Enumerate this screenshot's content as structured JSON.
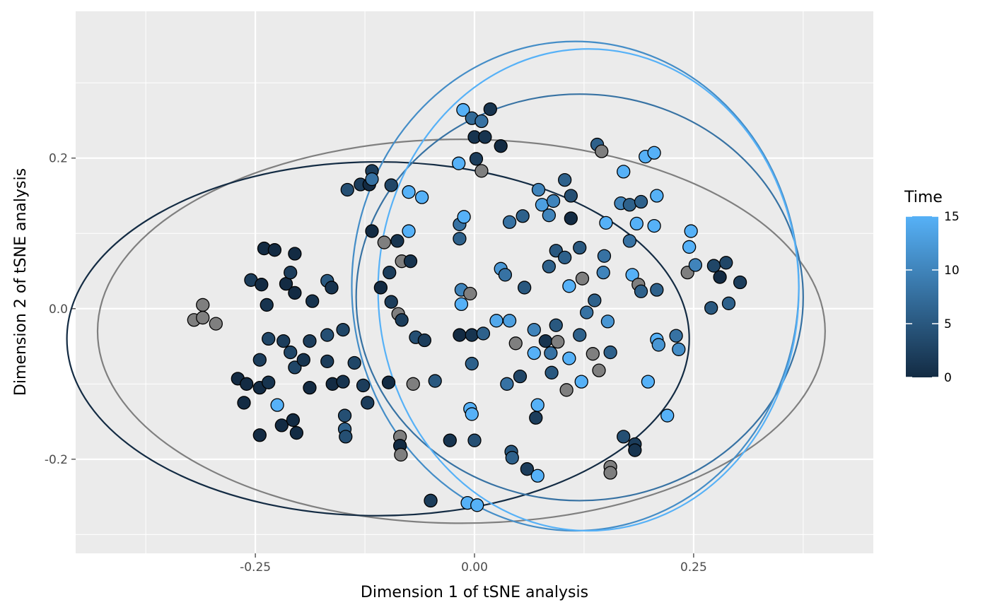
{
  "chart_data": {
    "type": "scatter",
    "xlabel": "Dimension 1 of tSNE analysis",
    "ylabel": "Dimension 2 of tSNE analysis",
    "xlim": [
      -0.455,
      0.455
    ],
    "ylim": [
      -0.325,
      0.395
    ],
    "x_ticks": [
      -0.25,
      0.0,
      0.25
    ],
    "x_tick_labels": [
      "-0.25",
      "0.00",
      "0.25"
    ],
    "y_ticks": [
      -0.2,
      0.0,
      0.2
    ],
    "y_tick_labels": [
      "-0.2",
      "0.0",
      "0.2"
    ],
    "grid": true,
    "panel_background": "#ebebeb",
    "legend": {
      "title": "Time",
      "placement": "right",
      "type": "colorbar",
      "range": [
        0,
        15
      ],
      "breaks": [
        0,
        5,
        10,
        15
      ],
      "break_labels": [
        "0",
        "5",
        "10",
        "15"
      ],
      "low_color": "#132b43",
      "high_color": "#56b1f7",
      "na_color": "#7f7f7f"
    },
    "ellipses": [
      {
        "time": null,
        "cx": -0.015,
        "cy": -0.03,
        "rx": 0.415,
        "ry": 0.255
      },
      {
        "time": 0,
        "cx": -0.11,
        "cy": -0.04,
        "rx": 0.355,
        "ry": 0.235
      },
      {
        "time": 8,
        "cx": 0.12,
        "cy": 0.015,
        "rx": 0.255,
        "ry": 0.27
      },
      {
        "time": 11,
        "cx": 0.115,
        "cy": 0.03,
        "rx": 0.255,
        "ry": 0.325
      },
      {
        "time": 15,
        "cx": 0.13,
        "cy": 0.025,
        "rx": 0.24,
        "ry": 0.32
      }
    ],
    "points": [
      {
        "x": -0.32,
        "y": -0.015,
        "t": null
      },
      {
        "x": -0.31,
        "y": 0.005,
        "t": null
      },
      {
        "x": -0.31,
        "y": -0.012,
        "t": null
      },
      {
        "x": -0.295,
        "y": -0.02,
        "t": null
      },
      {
        "x": -0.27,
        "y": -0.093,
        "t": 0
      },
      {
        "x": -0.263,
        "y": -0.125,
        "t": 0
      },
      {
        "x": -0.26,
        "y": -0.1,
        "t": 0
      },
      {
        "x": -0.255,
        "y": 0.038,
        "t": 2
      },
      {
        "x": -0.245,
        "y": -0.168,
        "t": 0
      },
      {
        "x": -0.245,
        "y": -0.068,
        "t": 2
      },
      {
        "x": -0.245,
        "y": -0.105,
        "t": 0
      },
      {
        "x": -0.243,
        "y": 0.032,
        "t": 0
      },
      {
        "x": -0.24,
        "y": 0.08,
        "t": 0
      },
      {
        "x": -0.237,
        "y": 0.005,
        "t": 1
      },
      {
        "x": -0.235,
        "y": -0.04,
        "t": 3
      },
      {
        "x": -0.235,
        "y": -0.098,
        "t": 1
      },
      {
        "x": -0.228,
        "y": 0.078,
        "t": 0
      },
      {
        "x": -0.225,
        "y": -0.128,
        "t": 15
      },
      {
        "x": -0.22,
        "y": -0.155,
        "t": 0
      },
      {
        "x": -0.218,
        "y": -0.043,
        "t": 2
      },
      {
        "x": -0.215,
        "y": 0.033,
        "t": 0
      },
      {
        "x": -0.21,
        "y": 0.048,
        "t": 2
      },
      {
        "x": -0.21,
        "y": -0.058,
        "t": 3
      },
      {
        "x": -0.207,
        "y": -0.148,
        "t": 0
      },
      {
        "x": -0.205,
        "y": 0.021,
        "t": 0
      },
      {
        "x": -0.205,
        "y": 0.073,
        "t": 0
      },
      {
        "x": -0.205,
        "y": -0.078,
        "t": 3
      },
      {
        "x": -0.203,
        "y": -0.165,
        "t": 0
      },
      {
        "x": -0.195,
        "y": -0.068,
        "t": 1
      },
      {
        "x": -0.188,
        "y": -0.043,
        "t": 2
      },
      {
        "x": -0.188,
        "y": -0.105,
        "t": 0
      },
      {
        "x": -0.185,
        "y": 0.01,
        "t": 1
      },
      {
        "x": -0.168,
        "y": 0.037,
        "t": 5
      },
      {
        "x": -0.168,
        "y": -0.035,
        "t": 4
      },
      {
        "x": -0.168,
        "y": -0.07,
        "t": 2
      },
      {
        "x": -0.163,
        "y": 0.028,
        "t": 1
      },
      {
        "x": -0.162,
        "y": -0.1,
        "t": 0
      },
      {
        "x": -0.15,
        "y": -0.028,
        "t": 3
      },
      {
        "x": -0.15,
        "y": -0.097,
        "t": 1
      },
      {
        "x": -0.148,
        "y": -0.142,
        "t": 4
      },
      {
        "x": -0.148,
        "y": -0.16,
        "t": 6
      },
      {
        "x": -0.147,
        "y": -0.17,
        "t": 4
      },
      {
        "x": -0.145,
        "y": 0.158,
        "t": 4
      },
      {
        "x": -0.137,
        "y": -0.072,
        "t": 3
      },
      {
        "x": -0.13,
        "y": 0.165,
        "t": 2
      },
      {
        "x": -0.127,
        "y": -0.102,
        "t": 2
      },
      {
        "x": -0.122,
        "y": -0.125,
        "t": 2
      },
      {
        "x": -0.12,
        "y": 0.165,
        "t": 0
      },
      {
        "x": -0.117,
        "y": 0.103,
        "t": 0
      },
      {
        "x": -0.117,
        "y": 0.183,
        "t": 2
      },
      {
        "x": -0.117,
        "y": 0.172,
        "t": 8
      },
      {
        "x": -0.107,
        "y": 0.028,
        "t": 0
      },
      {
        "x": -0.103,
        "y": 0.088,
        "t": null
      },
      {
        "x": -0.098,
        "y": -0.098,
        "t": 0
      },
      {
        "x": -0.097,
        "y": 0.048,
        "t": 2
      },
      {
        "x": -0.095,
        "y": 0.164,
        "t": 3
      },
      {
        "x": -0.095,
        "y": 0.009,
        "t": 2
      },
      {
        "x": -0.088,
        "y": 0.09,
        "t": 1
      },
      {
        "x": -0.087,
        "y": -0.007,
        "t": null
      },
      {
        "x": -0.085,
        "y": -0.17,
        "t": null
      },
      {
        "x": -0.085,
        "y": -0.182,
        "t": 0
      },
      {
        "x": -0.084,
        "y": -0.194,
        "t": null
      },
      {
        "x": -0.083,
        "y": 0.063,
        "t": null
      },
      {
        "x": -0.083,
        "y": -0.015,
        "t": 2
      },
      {
        "x": -0.075,
        "y": 0.155,
        "t": 15
      },
      {
        "x": -0.075,
        "y": 0.103,
        "t": 15
      },
      {
        "x": -0.073,
        "y": 0.063,
        "t": 1
      },
      {
        "x": -0.07,
        "y": -0.1,
        "t": null
      },
      {
        "x": -0.067,
        "y": -0.038,
        "t": 4
      },
      {
        "x": -0.06,
        "y": 0.148,
        "t": 15
      },
      {
        "x": -0.057,
        "y": -0.042,
        "t": 2
      },
      {
        "x": -0.045,
        "y": -0.096,
        "t": 5
      },
      {
        "x": -0.05,
        "y": -0.255,
        "t": 1
      },
      {
        "x": -0.05,
        "y": -0.255,
        "t": 2
      },
      {
        "x": -0.028,
        "y": -0.175,
        "t": 1
      },
      {
        "x": -0.018,
        "y": 0.193,
        "t": 15
      },
      {
        "x": -0.017,
        "y": -0.035,
        "t": 0
      },
      {
        "x": -0.017,
        "y": 0.112,
        "t": 8
      },
      {
        "x": -0.017,
        "y": 0.093,
        "t": 6
      },
      {
        "x": -0.015,
        "y": 0.025,
        "t": 10
      },
      {
        "x": -0.015,
        "y": 0.006,
        "t": 15
      },
      {
        "x": -0.013,
        "y": 0.264,
        "t": 15
      },
      {
        "x": -0.012,
        "y": 0.122,
        "t": 15
      },
      {
        "x": -0.008,
        "y": -0.258,
        "t": 15
      },
      {
        "x": -0.005,
        "y": 0.02,
        "t": null
      },
      {
        "x": -0.005,
        "y": -0.133,
        "t": 15
      },
      {
        "x": -0.003,
        "y": -0.14,
        "t": 15
      },
      {
        "x": -0.003,
        "y": -0.073,
        "t": 6
      },
      {
        "x": -0.003,
        "y": -0.035,
        "t": 1
      },
      {
        "x": -0.003,
        "y": 0.253,
        "t": 7
      },
      {
        "x": 0.0,
        "y": 0.228,
        "t": 1
      },
      {
        "x": 0.0,
        "y": -0.175,
        "t": 4
      },
      {
        "x": 0.002,
        "y": 0.199,
        "t": 2
      },
      {
        "x": 0.003,
        "y": -0.261,
        "t": 15
      },
      {
        "x": 0.008,
        "y": 0.183,
        "t": null
      },
      {
        "x": 0.008,
        "y": 0.249,
        "t": 8
      },
      {
        "x": 0.01,
        "y": -0.033,
        "t": 6
      },
      {
        "x": 0.012,
        "y": 0.228,
        "t": 1
      },
      {
        "x": 0.018,
        "y": 0.265,
        "t": 1
      },
      {
        "x": 0.025,
        "y": -0.016,
        "t": 14
      },
      {
        "x": 0.03,
        "y": 0.216,
        "t": 0
      },
      {
        "x": 0.03,
        "y": 0.053,
        "t": 12
      },
      {
        "x": 0.035,
        "y": 0.045,
        "t": 8
      },
      {
        "x": 0.037,
        "y": -0.1,
        "t": 8
      },
      {
        "x": 0.04,
        "y": -0.016,
        "t": 13
      },
      {
        "x": 0.04,
        "y": 0.115,
        "t": 8
      },
      {
        "x": 0.042,
        "y": -0.19,
        "t": 5
      },
      {
        "x": 0.043,
        "y": -0.198,
        "t": 6
      },
      {
        "x": 0.047,
        "y": -0.046,
        "t": null
      },
      {
        "x": 0.052,
        "y": -0.09,
        "t": 3
      },
      {
        "x": 0.055,
        "y": 0.123,
        "t": 6
      },
      {
        "x": 0.057,
        "y": 0.028,
        "t": 5
      },
      {
        "x": 0.06,
        "y": -0.213,
        "t": 2
      },
      {
        "x": 0.068,
        "y": -0.028,
        "t": 10
      },
      {
        "x": 0.068,
        "y": -0.059,
        "t": 15
      },
      {
        "x": 0.07,
        "y": -0.145,
        "t": 2
      },
      {
        "x": 0.072,
        "y": -0.128,
        "t": 15
      },
      {
        "x": 0.072,
        "y": -0.222,
        "t": 15
      },
      {
        "x": 0.073,
        "y": 0.158,
        "t": 10
      },
      {
        "x": 0.077,
        "y": 0.138,
        "t": 13
      },
      {
        "x": 0.081,
        "y": -0.043,
        "t": 1
      },
      {
        "x": 0.085,
        "y": 0.056,
        "t": 6
      },
      {
        "x": 0.085,
        "y": 0.124,
        "t": 10
      },
      {
        "x": 0.087,
        "y": -0.059,
        "t": 8
      },
      {
        "x": 0.088,
        "y": -0.085,
        "t": 5
      },
      {
        "x": 0.09,
        "y": 0.143,
        "t": 10
      },
      {
        "x": 0.093,
        "y": -0.022,
        "t": 5
      },
      {
        "x": 0.093,
        "y": 0.077,
        "t": 5
      },
      {
        "x": 0.095,
        "y": -0.044,
        "t": null
      },
      {
        "x": 0.103,
        "y": 0.171,
        "t": 6
      },
      {
        "x": 0.103,
        "y": 0.068,
        "t": 6
      },
      {
        "x": 0.105,
        "y": -0.108,
        "t": null
      },
      {
        "x": 0.108,
        "y": 0.03,
        "t": 15
      },
      {
        "x": 0.108,
        "y": -0.066,
        "t": 15
      },
      {
        "x": 0.11,
        "y": 0.15,
        "t": 4
      },
      {
        "x": 0.11,
        "y": 0.12,
        "t": 0
      },
      {
        "x": 0.12,
        "y": 0.081,
        "t": 5
      },
      {
        "x": 0.12,
        "y": -0.035,
        "t": 6
      },
      {
        "x": 0.122,
        "y": -0.097,
        "t": 15
      },
      {
        "x": 0.123,
        "y": 0.04,
        "t": null
      },
      {
        "x": 0.128,
        "y": -0.005,
        "t": 8
      },
      {
        "x": 0.135,
        "y": -0.06,
        "t": null
      },
      {
        "x": 0.137,
        "y": 0.011,
        "t": 6
      },
      {
        "x": 0.14,
        "y": 0.218,
        "t": 6
      },
      {
        "x": 0.142,
        "y": -0.082,
        "t": null
      },
      {
        "x": 0.145,
        "y": 0.209,
        "t": null
      },
      {
        "x": 0.147,
        "y": 0.048,
        "t": 10
      },
      {
        "x": 0.148,
        "y": 0.07,
        "t": 8
      },
      {
        "x": 0.15,
        "y": 0.114,
        "t": 15
      },
      {
        "x": 0.152,
        "y": -0.017,
        "t": 12
      },
      {
        "x": 0.155,
        "y": -0.058,
        "t": 6
      },
      {
        "x": 0.155,
        "y": -0.21,
        "t": null
      },
      {
        "x": 0.155,
        "y": -0.218,
        "t": null
      },
      {
        "x": 0.167,
        "y": 0.14,
        "t": 10
      },
      {
        "x": 0.17,
        "y": 0.182,
        "t": 15
      },
      {
        "x": 0.17,
        "y": -0.17,
        "t": 4
      },
      {
        "x": 0.177,
        "y": 0.138,
        "t": 6
      },
      {
        "x": 0.177,
        "y": 0.09,
        "t": 8
      },
      {
        "x": 0.18,
        "y": 0.045,
        "t": 15
      },
      {
        "x": 0.183,
        "y": -0.18,
        "t": 2
      },
      {
        "x": 0.183,
        "y": -0.188,
        "t": 1
      },
      {
        "x": 0.185,
        "y": 0.113,
        "t": 15
      },
      {
        "x": 0.187,
        "y": 0.032,
        "t": null
      },
      {
        "x": 0.19,
        "y": 0.023,
        "t": 6
      },
      {
        "x": 0.19,
        "y": 0.142,
        "t": 6
      },
      {
        "x": 0.195,
        "y": 0.202,
        "t": 15
      },
      {
        "x": 0.198,
        "y": -0.097,
        "t": 15
      },
      {
        "x": 0.205,
        "y": 0.207,
        "t": 15
      },
      {
        "x": 0.205,
        "y": 0.11,
        "t": 15
      },
      {
        "x": 0.208,
        "y": 0.15,
        "t": 15
      },
      {
        "x": 0.208,
        "y": 0.025,
        "t": 6
      },
      {
        "x": 0.208,
        "y": -0.041,
        "t": 15
      },
      {
        "x": 0.21,
        "y": -0.048,
        "t": 12
      },
      {
        "x": 0.22,
        "y": -0.142,
        "t": 15
      },
      {
        "x": 0.23,
        "y": -0.036,
        "t": 8
      },
      {
        "x": 0.233,
        "y": -0.054,
        "t": 11
      },
      {
        "x": 0.243,
        "y": 0.048,
        "t": null
      },
      {
        "x": 0.245,
        "y": 0.082,
        "t": 15
      },
      {
        "x": 0.247,
        "y": 0.103,
        "t": 15
      },
      {
        "x": 0.252,
        "y": 0.058,
        "t": 10
      },
      {
        "x": 0.27,
        "y": 0.001,
        "t": 5
      },
      {
        "x": 0.273,
        "y": 0.057,
        "t": 3
      },
      {
        "x": 0.28,
        "y": 0.042,
        "t": 0
      },
      {
        "x": 0.287,
        "y": 0.061,
        "t": 3
      },
      {
        "x": 0.29,
        "y": 0.007,
        "t": 6
      },
      {
        "x": 0.303,
        "y": 0.035,
        "t": 2
      }
    ]
  }
}
